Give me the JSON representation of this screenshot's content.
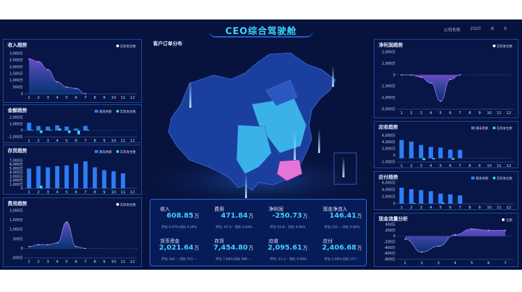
{
  "header": {
    "title": "CEO综合驾驶舱",
    "company_label": "公司名称",
    "year": "2020",
    "period": "6"
  },
  "map": {
    "title": "客户订单分布"
  },
  "panels": {
    "income": {
      "title": "收入趋势",
      "legend": [
        "实际发生数"
      ],
      "y_ticks": [
        "3,000万",
        "2,500万",
        "2,000万",
        "1,500万",
        "1,000万",
        "500万",
        "0"
      ],
      "x_ticks": [
        "1",
        "2",
        "3",
        "4",
        "5",
        "6",
        "7",
        "8",
        "9",
        "10",
        "11",
        "12"
      ],
      "chart_data": {
        "type": "area",
        "x": [
          1,
          2,
          3,
          4,
          5,
          6,
          7
        ],
        "values": [
          2600,
          2400,
          1800,
          900,
          500,
          400,
          0
        ],
        "ylim": [
          0,
          3000
        ]
      }
    },
    "amount": {
      "title": "金额趋势",
      "legend": [
        "期末余额",
        "实际发生数"
      ],
      "y_ticks": [
        "2,000万",
        "1,000万",
        "0",
        "-1,000万"
      ],
      "x_ticks": [
        "1",
        "2",
        "3",
        "4",
        "5",
        "6",
        "7",
        "8",
        "9",
        "10",
        "11",
        "12"
      ],
      "chart_data": {
        "type": "bar",
        "series": [
          {
            "name": "期末余额",
            "values": [
              1200,
              700,
              600,
              800,
              600,
              300,
              700,
              null,
              null,
              null,
              null,
              null
            ]
          },
          {
            "name": "实际发生数",
            "values": [
              100,
              -400,
              100,
              300,
              -400,
              -600,
              100,
              null,
              null,
              null,
              null,
              null
            ]
          }
        ],
        "ylim": [
          -1000,
          2000
        ]
      }
    },
    "inventory": {
      "title": "存货趋势",
      "legend": [
        "期末余额",
        "实际发生数"
      ],
      "y_ticks": [
        "7,000万",
        "6,000万",
        "5,000万",
        "4,000万",
        "3,000万",
        "2,000万",
        "1,000万",
        "0"
      ],
      "x_ticks": [
        "1",
        "2",
        "3",
        "4",
        "5",
        "6",
        "7",
        "8",
        "9",
        "10",
        "11",
        "12"
      ],
      "chart_data": {
        "type": "bar",
        "series": [
          {
            "name": "期末余额",
            "values": [
              5000,
              5600,
              5300,
              5600,
              5800,
              6200,
              6800,
              5300,
              4600,
              4300,
              3800,
              null
            ]
          },
          {
            "name": "实际发生数",
            "values": [
              0,
              700,
              0,
              0,
              0,
              0,
              0,
              0,
              0,
              0,
              0,
              0
            ]
          }
        ],
        "ylim": [
          0,
          7000
        ]
      }
    },
    "expense": {
      "title": "费用趋势",
      "legend": [
        "实际发生数"
      ],
      "y_ticks": [
        "2,000万",
        "1,500万",
        "1,000万",
        "500万",
        "0",
        "-500万"
      ],
      "x_ticks": [
        "1",
        "2",
        "3",
        "4",
        "5",
        "6",
        "7",
        "8",
        "9",
        "10",
        "11",
        "12"
      ],
      "chart_data": {
        "type": "area",
        "x": [
          1,
          2,
          3,
          4,
          5,
          6,
          7
        ],
        "values": [
          100,
          200,
          200,
          300,
          1400,
          100,
          0
        ],
        "ylim": [
          -500,
          2000
        ]
      }
    },
    "netprofit": {
      "title": "净利润趋势",
      "legend": [
        "实际发生数"
      ],
      "y_ticks": [
        "2,000万",
        "1,000万",
        "0",
        "-1,000万",
        "-2,000万",
        "-3,000万"
      ],
      "x_ticks": [
        "1",
        "2",
        "3",
        "4",
        "5",
        "6",
        "7",
        "8",
        "9",
        "10",
        "11",
        "12"
      ],
      "chart_data": {
        "type": "area",
        "x": [
          1,
          2,
          3,
          4,
          5,
          6,
          7
        ],
        "values": [
          0,
          0,
          -200,
          -700,
          -2300,
          -400,
          0
        ],
        "ylim": [
          -3000,
          2000
        ]
      }
    },
    "receivable": {
      "title": "应收趋势",
      "legend": [
        "期末余额",
        "实际发生数"
      ],
      "y_ticks": [
        "6,000万",
        "4,000万",
        "2,000万",
        "0",
        "-1,000万"
      ],
      "x_ticks": [
        "1",
        "2",
        "3",
        "4",
        "5",
        "6",
        "7",
        "8",
        "9",
        "10",
        "11",
        "12"
      ],
      "chart_data": {
        "type": "bar",
        "series": [
          {
            "name": "期末余额",
            "values": [
              4800,
              4400,
              3500,
              3000,
              2800,
              2300,
              2200,
              null,
              null,
              null,
              null,
              null
            ]
          },
          {
            "name": "实际发生数",
            "values": [
              0,
              0,
              -500,
              -300,
              0,
              -400,
              0,
              null,
              null,
              null,
              null,
              null
            ]
          }
        ],
        "ylim": [
          -1000,
          6000
        ]
      }
    },
    "payable": {
      "title": "应付趋势",
      "legend": [
        "期末余额",
        "实际发生数"
      ],
      "y_ticks": [
        "6,000万",
        "4,000万",
        "2,000万",
        "0"
      ],
      "x_ticks": [
        "1",
        "2",
        "3",
        "4",
        "5",
        "6",
        "7",
        "8",
        "9",
        "10",
        "11",
        "12"
      ],
      "chart_data": {
        "type": "bar",
        "series": [
          {
            "name": "期末余额",
            "values": [
              4600,
              4200,
              3900,
              3600,
              2900,
              2700,
              2400,
              null,
              null,
              null,
              null,
              null
            ]
          },
          {
            "name": "实际发生数",
            "values": [
              0,
              200,
              0,
              0,
              300,
              0,
              0,
              null,
              null,
              null,
              null,
              null
            ]
          }
        ],
        "ylim": [
          0,
          6000
        ]
      }
    },
    "cashflow": {
      "title": "现金流量分析",
      "legend": [
        "全部"
      ],
      "y_ticks": [
        "400万",
        "200万",
        "0",
        "-200万",
        "-400万",
        "-600万",
        "-800万"
      ],
      "x_ticks": [
        "1",
        "2",
        "3",
        "4",
        "5",
        "6",
        "7"
      ],
      "chart_data": {
        "type": "area",
        "x": [
          1,
          2,
          3,
          4,
          5,
          6,
          7
        ],
        "values": [
          -100,
          -550,
          -350,
          50,
          250,
          200,
          200
        ],
        "ylim": [
          -800,
          400
        ]
      }
    }
  },
  "kpis": [
    {
      "label": "收入",
      "value": "608.85",
      "unit": "万",
      "sub": "环比  0.27%    同比  0.00%"
    },
    {
      "label": "费用",
      "value": "471.84",
      "unit": "万",
      "sub": "环比  -67.4···   同比  0.00%"
    },
    {
      "label": "净利润",
      "value": "-250.73",
      "unit": "万",
      "sub": "环比  93.8···   同比  0.00%"
    },
    {
      "label": "现金净流入",
      "value": "146.41",
      "unit": "万",
      "sub": "环比  133.···   同比  0.00%"
    },
    {
      "label": "货币资金",
      "value": "2,021.64",
      "unit": "万",
      "sub": "环比  164.···   同比  515.···"
    },
    {
      "label": "存货",
      "value": "7,454.80",
      "unit": "万",
      "sub": "环比  7.84%    同比  969.···"
    },
    {
      "label": "应收",
      "value": "2,095.61",
      "unit": "万",
      "sub": "环比  -11.2···   同比  0.00%"
    },
    {
      "label": "应付",
      "value": "2,406.68",
      "unit": "万",
      "sub": "环比  2.26%    同比  117···"
    }
  ],
  "colors": {
    "background": "#07133d",
    "accent": "#3ad7ff",
    "bar": "#2f7cf5",
    "bar2": "#2fe0e0",
    "map_light": "#3ab2e8",
    "map_dark": "#1b3f9e",
    "map_pink": "#e474d8"
  }
}
